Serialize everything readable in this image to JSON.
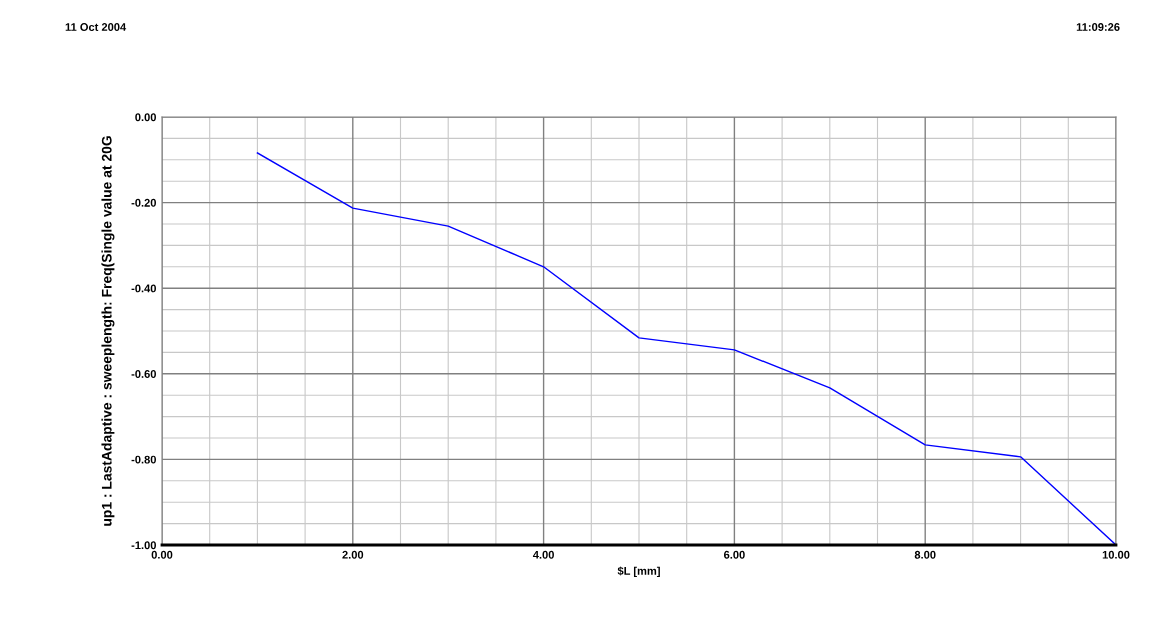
{
  "chart_data": {
    "type": "line",
    "annotations": [
      "11 Oct 2004",
      "11:09:26"
    ],
    "xlabel": "$L [mm]",
    "ylabel": "up1 : LastAdaptive : sweeplength: Freq(Single value at 20G",
    "x": [
      1,
      2,
      3,
      4,
      5,
      6,
      7,
      8,
      9,
      10
    ],
    "series": [
      {
        "color": "#0000ff",
        "values": [
          -0.084,
          -0.213,
          -0.255,
          -0.35,
          -0.516,
          -0.544,
          -0.633,
          -0.766,
          -0.794,
          -1.0
        ]
      }
    ],
    "xlim": [
      0,
      10
    ],
    "ylim": [
      -1,
      0
    ],
    "xticks": [
      {
        "value": 0,
        "label": "0.00"
      },
      {
        "value": 2,
        "label": "2.00"
      },
      {
        "value": 4,
        "label": "4.00"
      },
      {
        "value": 6,
        "label": "6.00"
      },
      {
        "value": 8,
        "label": "8.00"
      },
      {
        "value": 10,
        "label": "10.00"
      }
    ],
    "yticks": [
      {
        "value": -1,
        "label": "-1.00"
      },
      {
        "value": -0.8,
        "label": "-0.80"
      },
      {
        "value": -0.6,
        "label": "-0.60"
      },
      {
        "value": -0.4,
        "label": "-0.40"
      },
      {
        "value": -0.2,
        "label": "-0.20"
      },
      {
        "value": 0,
        "label": "0.00"
      }
    ],
    "grid": true,
    "legend": false,
    "marker": "none",
    "line_style": "solid"
  }
}
